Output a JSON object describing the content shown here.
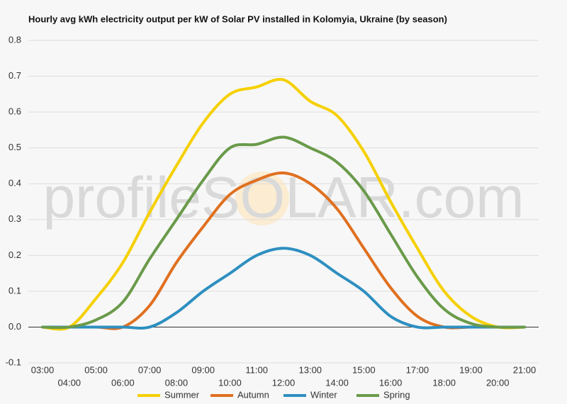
{
  "chart_data": {
    "type": "line",
    "title": "Hourly avg kWh electricity output per kW of Solar PV installed in Kolomyia, Ukraine (by season)",
    "watermark": "profileSOLAR.com",
    "categories": [
      "03:00",
      "04:00",
      "05:00",
      "06:00",
      "07:00",
      "08:00",
      "09:00",
      "10:00",
      "11:00",
      "12:00",
      "13:00",
      "14:00",
      "15:00",
      "16:00",
      "17:00",
      "18:00",
      "19:00",
      "20:00",
      "21:00"
    ],
    "series": [
      {
        "name": "Summer",
        "color": "#f5d000",
        "values": [
          0,
          0,
          0.08,
          0.18,
          0.32,
          0.45,
          0.57,
          0.65,
          0.67,
          0.69,
          0.63,
          0.59,
          0.49,
          0.35,
          0.22,
          0.1,
          0.03,
          0,
          0
        ]
      },
      {
        "name": "Autumn",
        "color": "#e07020",
        "values": [
          0,
          0,
          0,
          0,
          0.06,
          0.18,
          0.28,
          0.37,
          0.41,
          0.43,
          0.4,
          0.33,
          0.22,
          0.11,
          0.03,
          0,
          0,
          0,
          0
        ]
      },
      {
        "name": "Winter",
        "color": "#2e8fc0",
        "values": [
          0,
          0,
          0,
          0,
          0,
          0.04,
          0.1,
          0.15,
          0.2,
          0.22,
          0.2,
          0.15,
          0.1,
          0.03,
          0,
          0,
          0,
          0,
          0
        ]
      },
      {
        "name": "Spring",
        "color": "#6a9a4a",
        "values": [
          0,
          0,
          0.02,
          0.07,
          0.19,
          0.3,
          0.41,
          0.5,
          0.51,
          0.53,
          0.5,
          0.46,
          0.38,
          0.26,
          0.14,
          0.05,
          0.01,
          0,
          0
        ]
      }
    ],
    "ylim": [
      -0.1,
      0.8
    ],
    "yticks": [
      -0.1,
      {
        "value": 0,
        "label": "0.0"
      },
      0.1,
      0.2,
      0.3,
      0.4,
      0.5,
      0.6,
      0.7,
      0.8
    ],
    "grid": true
  }
}
